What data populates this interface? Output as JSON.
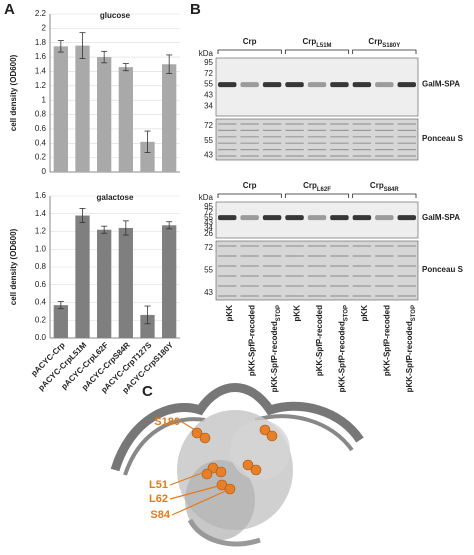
{
  "chart_data": [
    {
      "type": "bar",
      "title": "glucose",
      "ylabel": "cell density (OD600)",
      "categories": [
        null,
        null,
        null,
        null,
        null,
        null
      ],
      "values": [
        1.75,
        1.76,
        1.6,
        1.46,
        0.42,
        1.5
      ],
      "errors": [
        0.08,
        0.18,
        0.08,
        0.05,
        0.15,
        0.13
      ],
      "color": "#a9a9a9",
      "ylim": [
        0,
        2.2
      ],
      "yticks": [
        0,
        0.2,
        0.4,
        0.6,
        0.8,
        1,
        1.2,
        1.4,
        1.6,
        1.8,
        2,
        2.2
      ],
      "grid": true
    },
    {
      "type": "bar",
      "title": "galactose",
      "ylabel": "cell density (OD600)",
      "categories": [
        "pACYC-Crp",
        "pACYC-CrpL51M",
        "pACYC-CrpL62F",
        "pACYC-CrpS84R",
        "pACYC-CrpT127S",
        "pACYC-CrpS180Y"
      ],
      "values": [
        0.37,
        1.38,
        1.22,
        1.24,
        0.26,
        1.27
      ],
      "errors": [
        0.04,
        0.08,
        0.04,
        0.08,
        0.1,
        0.04
      ],
      "color": "#7f7f7f",
      "ylim": [
        0,
        1.6
      ],
      "yticks": [
        {
          "value": 0,
          "label": "0.0"
        },
        0.2,
        0.4,
        0.6,
        0.8,
        {
          "value": 1,
          "label": "1.0"
        },
        1.2,
        1.4,
        1.6
      ],
      "grid": true
    }
  ],
  "panel_a": {
    "label": "A"
  },
  "panel_b": {
    "label": "B",
    "blots": [
      {
        "unit": "kDa",
        "groups": [
          {
            "name": "Crp",
            "sub": ""
          },
          {
            "name": "Crp",
            "sub": "L51M"
          },
          {
            "name": "Crp",
            "sub": "S180Y"
          }
        ],
        "markers": [
          "95",
          "72",
          "55",
          "43",
          "34"
        ],
        "band_label": "GalM-SPA",
        "ponceau_markers": [
          "72",
          "55",
          "43"
        ],
        "ponceau_label": "Ponceau S"
      },
      {
        "unit": "kDa",
        "groups": [
          {
            "name": "Crp",
            "sub": ""
          },
          {
            "name": "Crp",
            "sub": "L62F"
          },
          {
            "name": "Crp",
            "sub": "S84R"
          }
        ],
        "markers": [
          "95",
          "72",
          "55",
          "43",
          "34",
          "26"
        ],
        "band_label": "GalM-SPA",
        "ponceau_markers": [
          "72",
          "55",
          "43"
        ],
        "ponceau_label": "Ponceau S"
      }
    ],
    "lanes": [
      {
        "name": "pKK",
        "sub": ""
      },
      {
        "name": "pKK-SpfP-recoded",
        "sub": ""
      },
      {
        "name": "pKK-SpfP-recoded",
        "sub": "STOP"
      },
      {
        "name": "pKK",
        "sub": ""
      },
      {
        "name": "pKK-SpfP-recoded",
        "sub": ""
      },
      {
        "name": "pKK-SpfP-recoded",
        "sub": "STOP"
      },
      {
        "name": "pKK",
        "sub": ""
      },
      {
        "name": "pKK-SpfP-recoded",
        "sub": ""
      },
      {
        "name": "pKK-SpfP-recoded",
        "sub": "STOP"
      }
    ]
  },
  "panel_c": {
    "label": "C",
    "residues": [
      "S180",
      "L51",
      "L62",
      "S84"
    ]
  }
}
